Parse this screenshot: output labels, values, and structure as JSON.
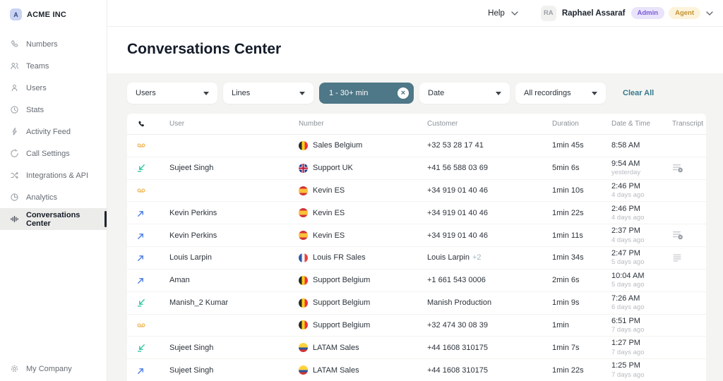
{
  "brand": {
    "initial": "A",
    "name": "ACME INC"
  },
  "sidebar": {
    "items": [
      {
        "label": "Numbers",
        "icon": "phone-icon"
      },
      {
        "label": "Teams",
        "icon": "teams-icon"
      },
      {
        "label": "Users",
        "icon": "user-icon"
      },
      {
        "label": "Stats",
        "icon": "stats-icon"
      },
      {
        "label": "Activity Feed",
        "icon": "activity-feed-icon"
      },
      {
        "label": "Call Settings",
        "icon": "call-settings-icon"
      },
      {
        "label": "Integrations & API",
        "icon": "integrations-icon"
      },
      {
        "label": "Analytics",
        "icon": "analytics-icon"
      },
      {
        "label": "Conversations Center",
        "icon": "conversations-icon",
        "active": true
      }
    ],
    "footer": {
      "label": "My Company",
      "icon": "gear-icon"
    }
  },
  "topbar": {
    "help_label": "Help",
    "user": {
      "initials": "RA",
      "name": "Raphael Assaraf"
    },
    "badges": [
      {
        "label": "Admin",
        "bg": "#e9e3fb",
        "color": "#7a5ad5"
      },
      {
        "label": "Agent",
        "bg": "#fdf3da",
        "color": "#c29234"
      }
    ]
  },
  "page": {
    "title": "Conversations Center"
  },
  "filters": {
    "items": [
      {
        "kind": "dropdown",
        "label": "Users"
      },
      {
        "kind": "dropdown",
        "label": "Lines"
      },
      {
        "kind": "chip",
        "label": "1 - 30+ min"
      },
      {
        "kind": "dropdown",
        "label": "Date"
      },
      {
        "kind": "dropdown",
        "label": "All recordings"
      },
      {
        "kind": "link",
        "label": "Clear All"
      }
    ]
  },
  "table": {
    "columns": [
      "User",
      "Number",
      "Customer",
      "Duration",
      "Date & Time",
      "Transcript"
    ],
    "rows": [
      {
        "type": "voicemail",
        "user": "",
        "flag": "be",
        "line": "Sales Belgium",
        "customer": "+32 53 28 17 41",
        "customer_extra": "",
        "duration": "1min 45s",
        "time": "8:58 AM",
        "ago": "",
        "transcript": "none"
      },
      {
        "type": "inbound",
        "user": "Sujeet Singh",
        "flag": "uk",
        "line": "Support UK",
        "customer": "+41 56 588 03 69",
        "customer_extra": "",
        "duration": "5min 6s",
        "time": "9:54 AM",
        "ago": "yesterday",
        "transcript": "summary"
      },
      {
        "type": "voicemail",
        "user": "",
        "flag": "es",
        "line": "Kevin ES",
        "customer": "+34 919 01 40 46",
        "customer_extra": "",
        "duration": "1min 10s",
        "time": "2:46 PM",
        "ago": "4 days ago",
        "transcript": "none"
      },
      {
        "type": "outbound",
        "user": "Kevin Perkins",
        "flag": "es",
        "line": "Kevin ES",
        "customer": "+34 919 01 40 46",
        "customer_extra": "",
        "duration": "1min 22s",
        "time": "2:46 PM",
        "ago": "4 days ago",
        "transcript": "none"
      },
      {
        "type": "outbound",
        "user": "Kevin Perkins",
        "flag": "es",
        "line": "Kevin ES",
        "customer": "+34 919 01 40 46",
        "customer_extra": "",
        "duration": "1min 11s",
        "time": "2:37 PM",
        "ago": "4 days ago",
        "transcript": "summary"
      },
      {
        "type": "outbound",
        "user": "Louis Larpin",
        "flag": "fr",
        "line": "Louis FR Sales",
        "customer": "Louis Larpin",
        "customer_extra": "+2",
        "duration": "1min 34s",
        "time": "2:47 PM",
        "ago": "5 days ago",
        "transcript": "lines"
      },
      {
        "type": "outbound",
        "user": "Aman",
        "flag": "be",
        "line": "Support Belgium",
        "customer": "+1 661 543 0006",
        "customer_extra": "",
        "duration": "2min 6s",
        "time": "10:04 AM",
        "ago": "5 days ago",
        "transcript": "none"
      },
      {
        "type": "inbound",
        "user": "Manish_2 Kumar",
        "flag": "be",
        "line": "Support Belgium",
        "customer": "Manish Production",
        "customer_extra": "",
        "duration": "1min 9s",
        "time": "7:26 AM",
        "ago": "6 days ago",
        "transcript": "none"
      },
      {
        "type": "voicemail",
        "user": "",
        "flag": "be",
        "line": "Support Belgium",
        "customer": "+32 474 30 08 39",
        "customer_extra": "",
        "duration": "1min",
        "time": "6:51 PM",
        "ago": "7 days ago",
        "transcript": "none"
      },
      {
        "type": "inbound",
        "user": "Sujeet Singh",
        "flag": "co",
        "line": "LATAM Sales",
        "customer": "+44 1608 310175",
        "customer_extra": "",
        "duration": "1min 7s",
        "time": "1:27 PM",
        "ago": "7 days ago",
        "transcript": "none"
      },
      {
        "type": "outbound",
        "user": "Sujeet Singh",
        "flag": "co",
        "line": "LATAM Sales",
        "customer": "+44 1608 310175",
        "customer_extra": "",
        "duration": "1min 22s",
        "time": "1:25 PM",
        "ago": "7 days ago",
        "transcript": "none"
      }
    ]
  },
  "colors": {
    "chip_bg": "#4e7787",
    "link_teal": "#35798d",
    "voicemail_amber": "#f2bc67",
    "inbound_green": "#35c3a2",
    "outbound_blue": "#4d7fe3"
  }
}
